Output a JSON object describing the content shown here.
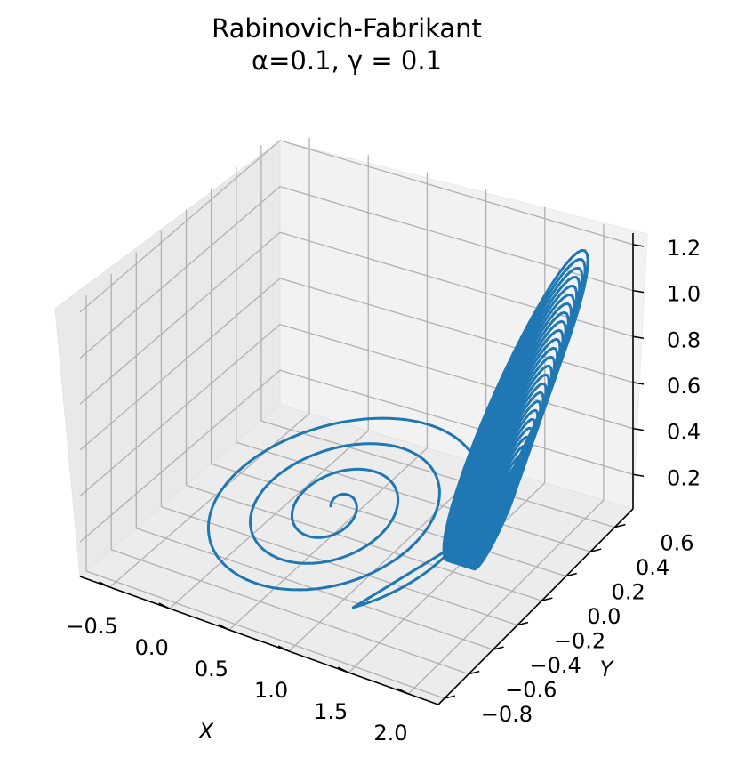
{
  "chart_data": {
    "type": "line",
    "projection": "3d",
    "title": "Rabinovich-Fabrikant",
    "subtitle": "α=0.1, γ = 0.1",
    "xlabel": "X",
    "ylabel": "Y",
    "zlabel": "",
    "xlim": [
      -0.75,
      2.25
    ],
    "ylim": [
      -0.85,
      0.75
    ],
    "zlim": [
      0.05,
      1.25
    ],
    "xticks": [
      "−0.5",
      "0.0",
      "0.5",
      "1.0",
      "1.5",
      "2.0"
    ],
    "yticks": [
      "−0.8",
      "−0.6",
      "−0.4",
      "−0.2",
      "0.0",
      "0.2",
      "0.4",
      "0.6"
    ],
    "zticks": [
      "0.2",
      "0.4",
      "0.6",
      "0.8",
      "1.0",
      "1.2"
    ],
    "grid": true,
    "series": [
      {
        "color": "#1f77b4",
        "description_of_shape": "inward spiral in lower plane (X≈-0.6..1.0) joined to a tall helical tube rising to Z≈1.1 near X≈1.5..2.0",
        "points": []
      }
    ]
  },
  "colors": {
    "line": "#1f77b4",
    "pane": "#f2f2f2",
    "grid": "#b0b0b0"
  }
}
